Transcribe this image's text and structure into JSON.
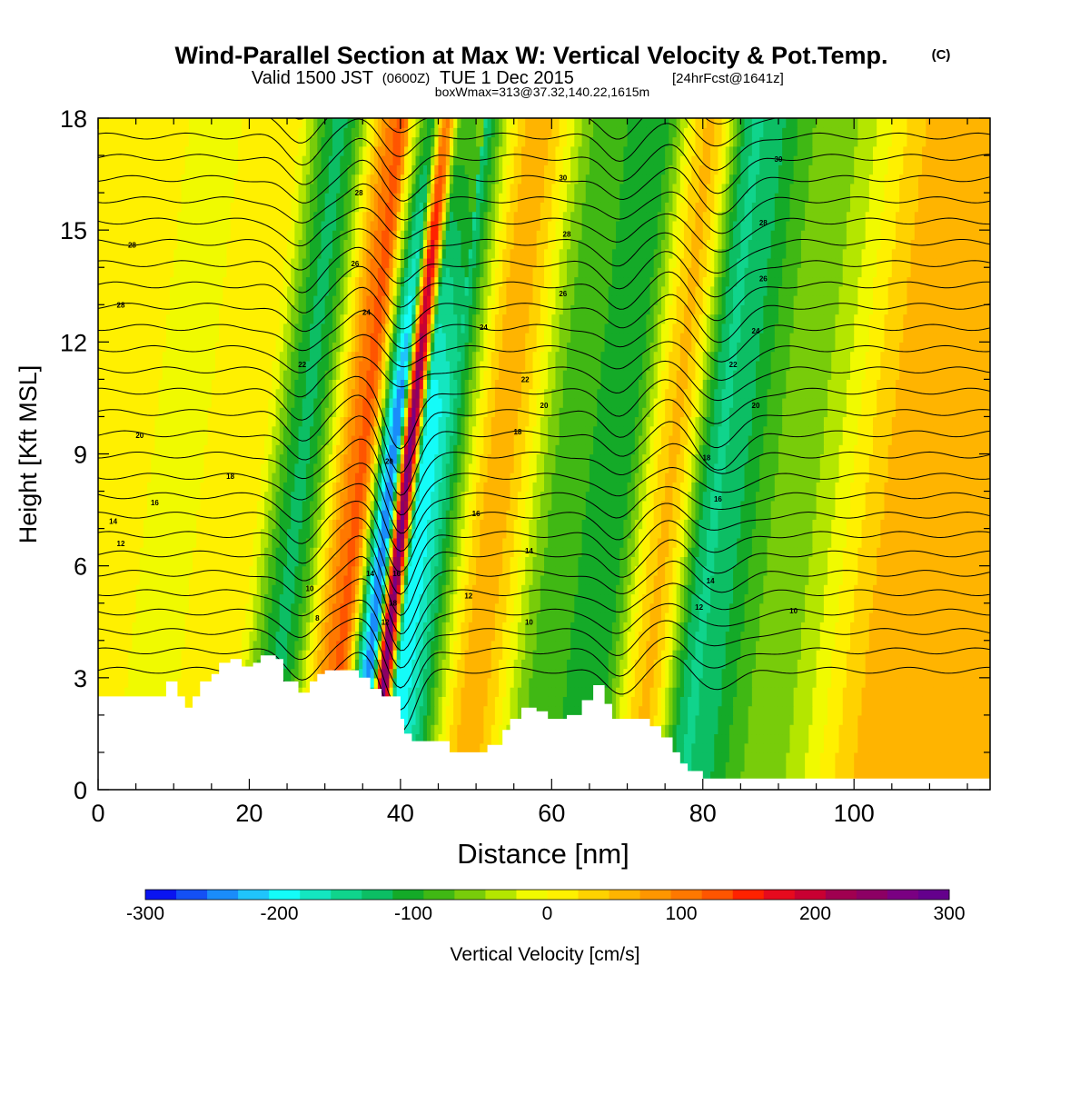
{
  "title": {
    "main": "Wind-Parallel Section at Max W: Vertical Velocity & Pot.Temp.",
    "copyright": "(C)",
    "valid_prefix": "Valid 1500 JST",
    "valid_utc": "(0600Z)",
    "valid_date": "TUE 1 Dec 2015",
    "forecast": "[24hrFcst@1641z]",
    "boxinfo": "boxWmax=313@37.32,140.22,1615m"
  },
  "colorbar": {
    "label": "Vertical Velocity [cm/s]",
    "tick_values": [
      -300,
      -200,
      -100,
      0,
      100,
      200,
      300
    ],
    "tick_labels": [
      "-300",
      "-200",
      "-100",
      "0",
      "100",
      "200",
      "300"
    ],
    "colors": [
      "#0a14f0",
      "#1450f5",
      "#1a8cfa",
      "#20c4fb",
      "#14fcf8",
      "#14e6c0",
      "#10d48c",
      "#0cbe64",
      "#14aa28",
      "#40b814",
      "#78cc0a",
      "#b4e600",
      "#f0fa00",
      "#fff000",
      "#ffd200",
      "#ffb400",
      "#ff9600",
      "#ff7800",
      "#ff5500",
      "#ff2200",
      "#e60a1e",
      "#c80032",
      "#a00050",
      "#8c0064",
      "#7a0082",
      "#64008c"
    ]
  },
  "chart_data": {
    "type": "heatmap",
    "xlabel": "Distance [nm]",
    "ylabel": "Height [Kft MSL]",
    "xlim": [
      0,
      118
    ],
    "ylim": [
      0,
      18
    ],
    "xticks": [
      0,
      20,
      40,
      60,
      80,
      100
    ],
    "yticks": [
      0,
      3,
      6,
      9,
      12,
      15,
      18
    ],
    "fill_variable": "Vertical Velocity [cm/s]",
    "fill_range": [
      -300,
      300
    ],
    "contour_variable": "Potential Temperature",
    "contour_levels": [
      6,
      8,
      10,
      12,
      14,
      16,
      18,
      20,
      22,
      24,
      26,
      28,
      30
    ],
    "vertical_velocity_bands": [
      {
        "x": 4,
        "w": 10
      },
      {
        "x": 10,
        "w": -10
      },
      {
        "x": 20,
        "w": 20
      },
      {
        "x": 27,
        "w": -120
      },
      {
        "x": 35,
        "w": 120
      },
      {
        "x": 39,
        "w": -250
      },
      {
        "x": 41,
        "w": 260
      },
      {
        "x": 43,
        "w": -200
      },
      {
        "x": 53,
        "w": 60
      },
      {
        "x": 62,
        "w": -80
      },
      {
        "x": 69,
        "w": -110
      },
      {
        "x": 76,
        "w": 50
      },
      {
        "x": 82,
        "w": -140
      },
      {
        "x": 92,
        "w": -60
      },
      {
        "x": 108,
        "w": 60
      }
    ],
    "contour_labels": [
      {
        "text": "28",
        "x": 4.5,
        "y": 14.6
      },
      {
        "text": "28",
        "x": 3.0,
        "y": 13.0
      },
      {
        "text": "20",
        "x": 5.5,
        "y": 9.5
      },
      {
        "text": "18",
        "x": 17.5,
        "y": 8.4
      },
      {
        "text": "16",
        "x": 7.5,
        "y": 7.7
      },
      {
        "text": "14",
        "x": 2.0,
        "y": 7.2
      },
      {
        "text": "12",
        "x": 3.0,
        "y": 6.6
      },
      {
        "text": "10",
        "x": 28.0,
        "y": 5.4
      },
      {
        "text": "8",
        "x": 29.0,
        "y": 4.6
      },
      {
        "text": "22",
        "x": 27.0,
        "y": 11.4
      },
      {
        "text": "26",
        "x": 34.0,
        "y": 14.1
      },
      {
        "text": "28",
        "x": 34.5,
        "y": 16.0
      },
      {
        "text": "24",
        "x": 35.5,
        "y": 12.8
      },
      {
        "text": "20",
        "x": 38.5,
        "y": 8.8
      },
      {
        "text": "14",
        "x": 36.0,
        "y": 5.8
      },
      {
        "text": "16",
        "x": 39.5,
        "y": 5.8
      },
      {
        "text": "18",
        "x": 39.0,
        "y": 5.0
      },
      {
        "text": "12",
        "x": 38.0,
        "y": 4.5
      },
      {
        "text": "24",
        "x": 51.0,
        "y": 12.4
      },
      {
        "text": "22",
        "x": 56.5,
        "y": 11.0
      },
      {
        "text": "20",
        "x": 59.0,
        "y": 10.3
      },
      {
        "text": "18",
        "x": 55.5,
        "y": 9.6
      },
      {
        "text": "16",
        "x": 50.0,
        "y": 7.4
      },
      {
        "text": "14",
        "x": 57.0,
        "y": 6.4
      },
      {
        "text": "12",
        "x": 49.0,
        "y": 5.2
      },
      {
        "text": "10",
        "x": 57.0,
        "y": 4.5
      },
      {
        "text": "30",
        "x": 61.5,
        "y": 16.4
      },
      {
        "text": "28",
        "x": 62.0,
        "y": 14.9
      },
      {
        "text": "26",
        "x": 61.5,
        "y": 13.3
      },
      {
        "text": "30",
        "x": 90.0,
        "y": 16.9
      },
      {
        "text": "28",
        "x": 88.0,
        "y": 15.2
      },
      {
        "text": "26",
        "x": 88.0,
        "y": 13.7
      },
      {
        "text": "24",
        "x": 87.0,
        "y": 12.3
      },
      {
        "text": "22",
        "x": 84.0,
        "y": 11.4
      },
      {
        "text": "20",
        "x": 87.0,
        "y": 10.3
      },
      {
        "text": "18",
        "x": 80.5,
        "y": 8.9
      },
      {
        "text": "16",
        "x": 82.0,
        "y": 7.8
      },
      {
        "text": "14",
        "x": 81.0,
        "y": 5.6
      },
      {
        "text": "12",
        "x": 79.5,
        "y": 4.9
      },
      {
        "text": "10",
        "x": 92.0,
        "y": 4.8
      }
    ],
    "terrain": [
      [
        0,
        2.5
      ],
      [
        7.5,
        2.5
      ],
      [
        9,
        2.9
      ],
      [
        10.5,
        2.5
      ],
      [
        11.5,
        2.2
      ],
      [
        12.5,
        2.5
      ],
      [
        13.5,
        2.9
      ],
      [
        15,
        3.1
      ],
      [
        16,
        3.4
      ],
      [
        17.5,
        3.5
      ],
      [
        19,
        3.3
      ],
      [
        20.5,
        3.4
      ],
      [
        21.5,
        3.6
      ],
      [
        23.5,
        3.5
      ],
      [
        24.5,
        2.9
      ],
      [
        26,
        2.9
      ],
      [
        26.5,
        2.6
      ],
      [
        28,
        2.9
      ],
      [
        29,
        3.1
      ],
      [
        30,
        3.2
      ],
      [
        33,
        3.2
      ],
      [
        34.5,
        3.0
      ],
      [
        36,
        2.7
      ],
      [
        37.5,
        2.5
      ],
      [
        39.5,
        2.5
      ],
      [
        40,
        1.9
      ],
      [
        40.5,
        1.5
      ],
      [
        41.5,
        1.3
      ],
      [
        45,
        1.3
      ],
      [
        46.5,
        1.0
      ],
      [
        50,
        1.0
      ],
      [
        51.5,
        1.2
      ],
      [
        53.5,
        1.6
      ],
      [
        54.5,
        1.9
      ],
      [
        56,
        2.2
      ],
      [
        58,
        2.1
      ],
      [
        59.5,
        1.9
      ],
      [
        62,
        2.0
      ],
      [
        64,
        2.4
      ],
      [
        65.5,
        2.8
      ],
      [
        67,
        2.3
      ],
      [
        68,
        1.9
      ],
      [
        71,
        1.9
      ],
      [
        73,
        1.7
      ],
      [
        74.5,
        1.4
      ],
      [
        76,
        1.0
      ],
      [
        77,
        0.7
      ],
      [
        78,
        0.5
      ],
      [
        80,
        0.3
      ],
      [
        118,
        0.3
      ]
    ]
  }
}
